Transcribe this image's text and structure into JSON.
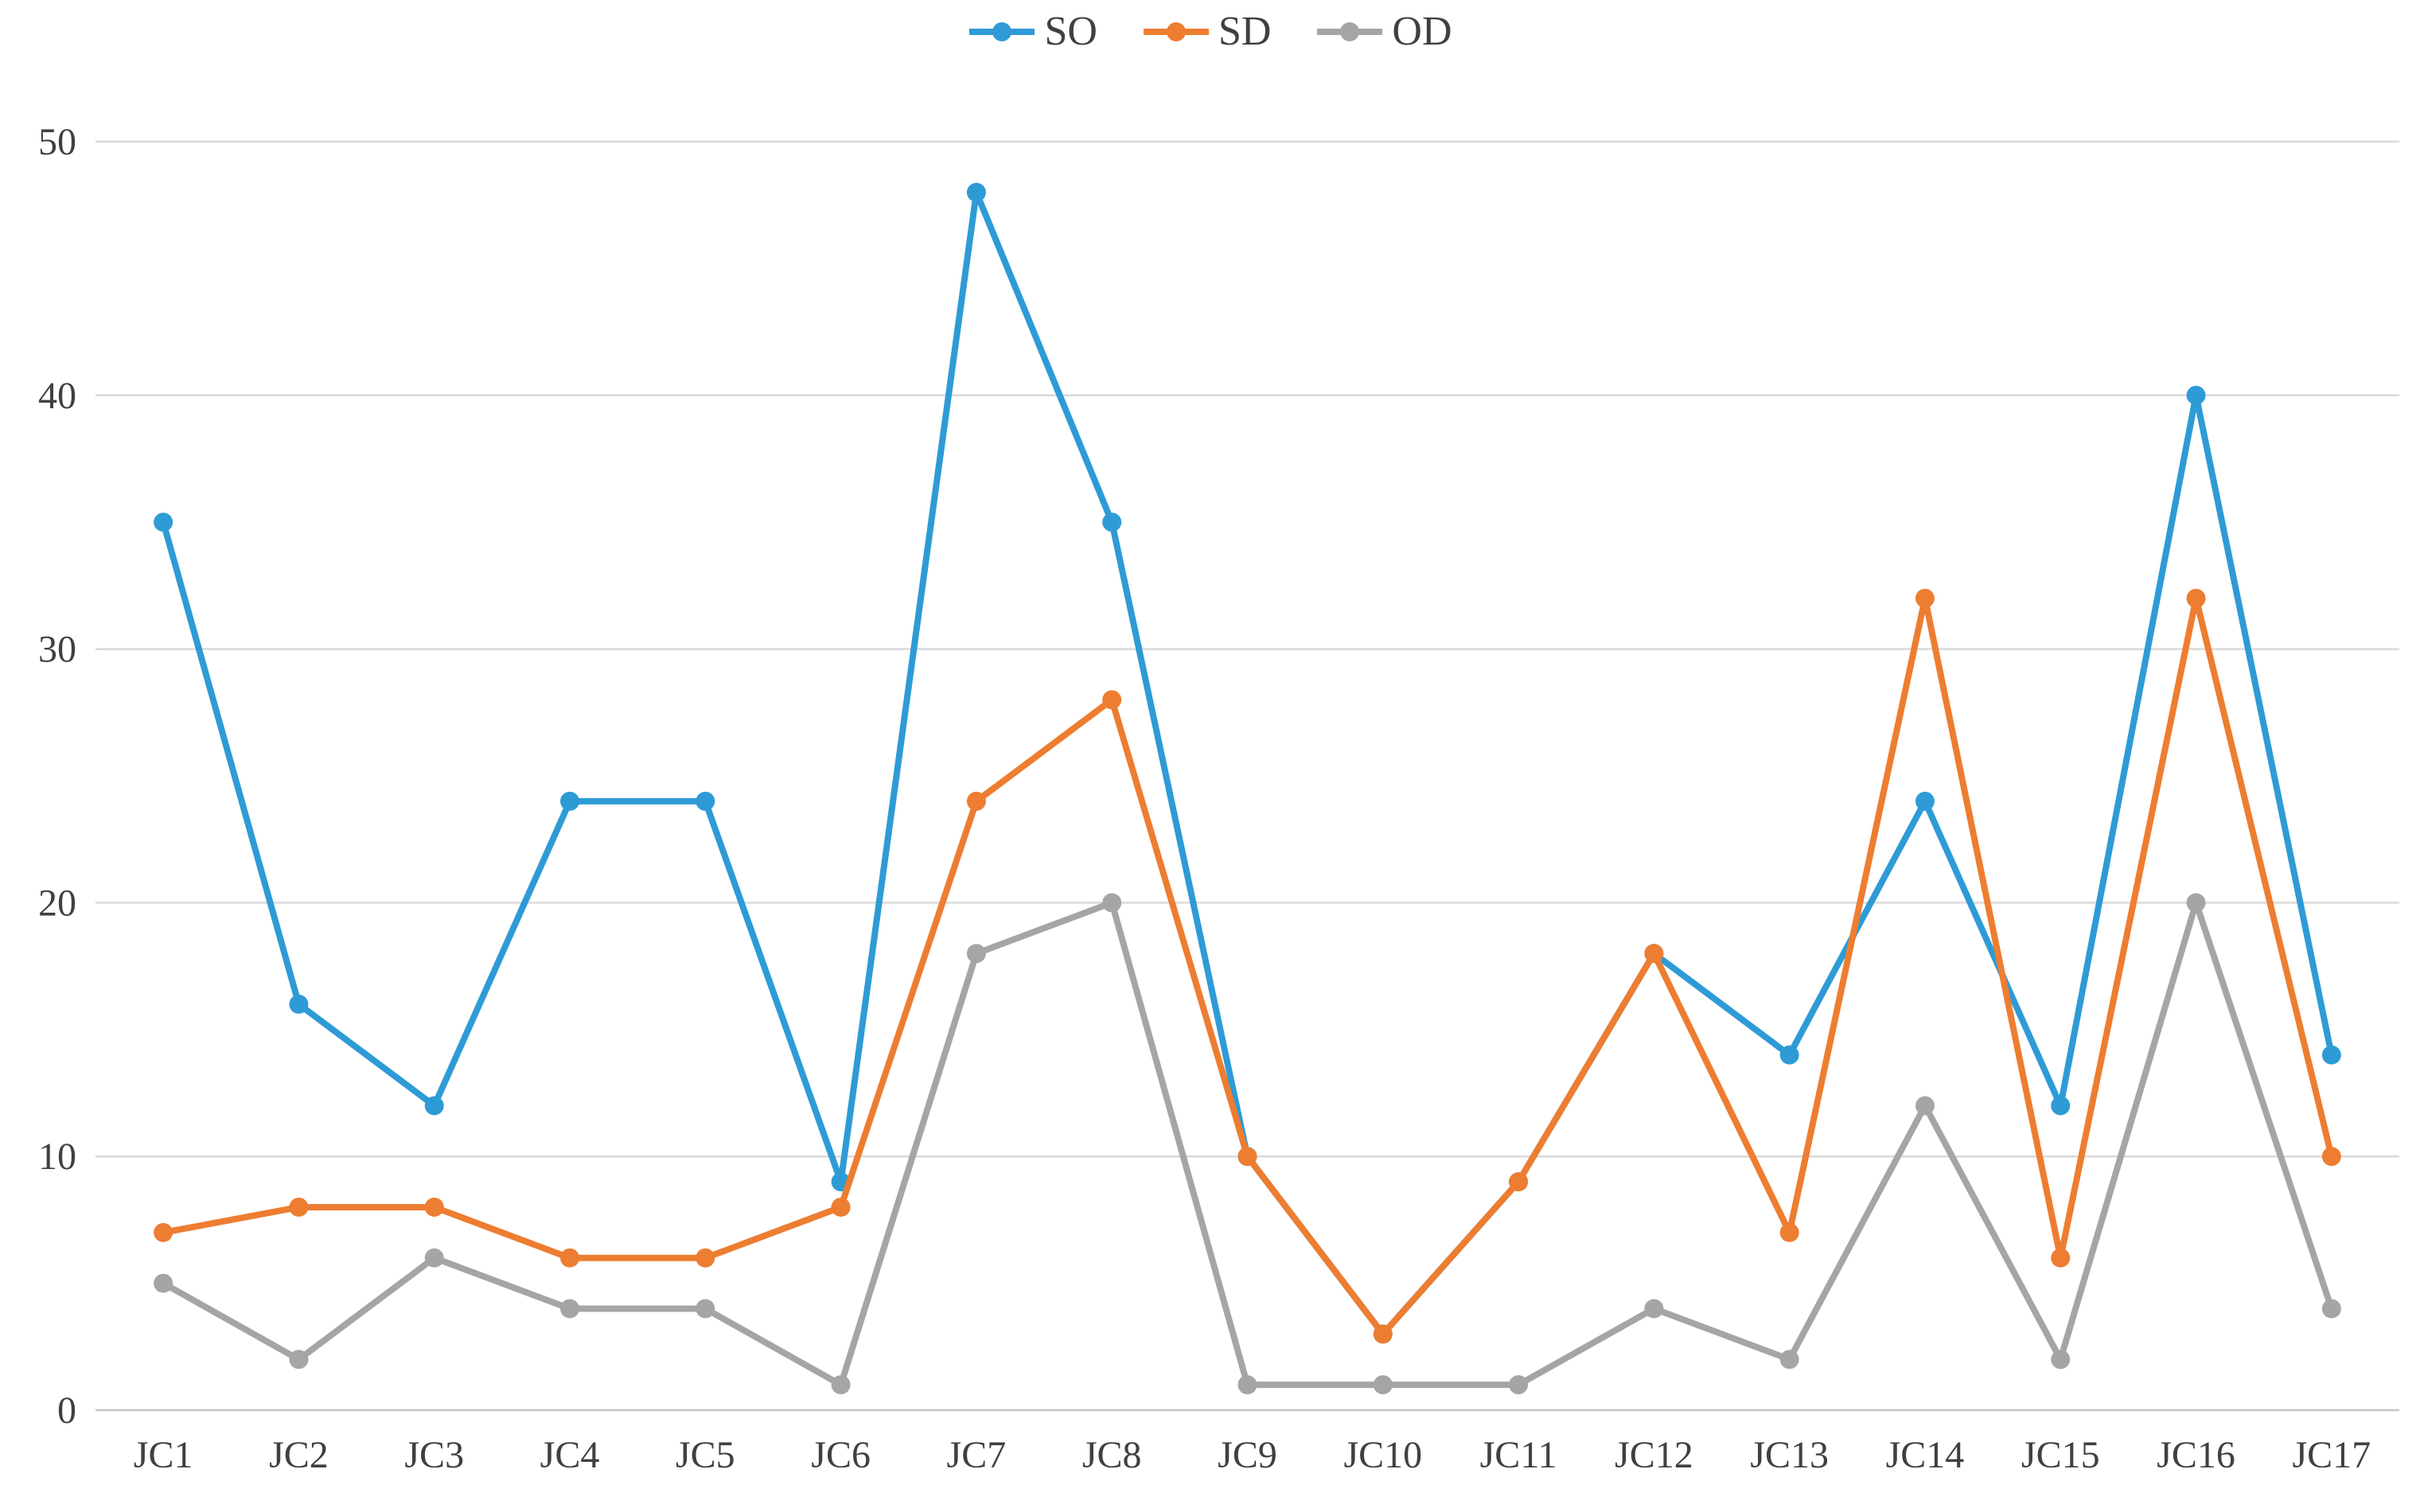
{
  "chart_data": {
    "type": "line",
    "title": "",
    "xlabel": "",
    "ylabel": "",
    "categories": [
      "JC1",
      "JC2",
      "JC3",
      "JC4",
      "JC5",
      "JC6",
      "JC7",
      "JC8",
      "JC9",
      "JC10",
      "JC11",
      "JC12",
      "JC13",
      "JC14",
      "JC15",
      "JC16",
      "JC17"
    ],
    "series": [
      {
        "name": "SO",
        "color": "#2E9BD6",
        "values": [
          35,
          16,
          12,
          24,
          24,
          9,
          48,
          35,
          10,
          3,
          9,
          18,
          14,
          24,
          12,
          40,
          14
        ]
      },
      {
        "name": "SD",
        "color": "#ED7D31",
        "values": [
          7,
          8,
          8,
          6,
          6,
          8,
          24,
          28,
          10,
          3,
          9,
          18,
          7,
          32,
          6,
          32,
          10
        ]
      },
      {
        "name": "OD",
        "color": "#A5A5A5",
        "values": [
          5,
          2,
          6,
          4,
          4,
          1,
          18,
          20,
          1,
          1,
          1,
          4,
          2,
          12,
          2,
          20,
          4
        ]
      }
    ],
    "ylim": [
      0,
      50
    ],
    "ytick_step": 10,
    "ytick_labels": [
      "0",
      "10",
      "20",
      "30",
      "40",
      "50"
    ],
    "grid": true,
    "legend_position": "top"
  },
  "colors": {
    "gridline": "#D9D9D9",
    "baseline": "#C6C6C6",
    "tick_label": "#404040",
    "background": "#FFFFFF"
  }
}
